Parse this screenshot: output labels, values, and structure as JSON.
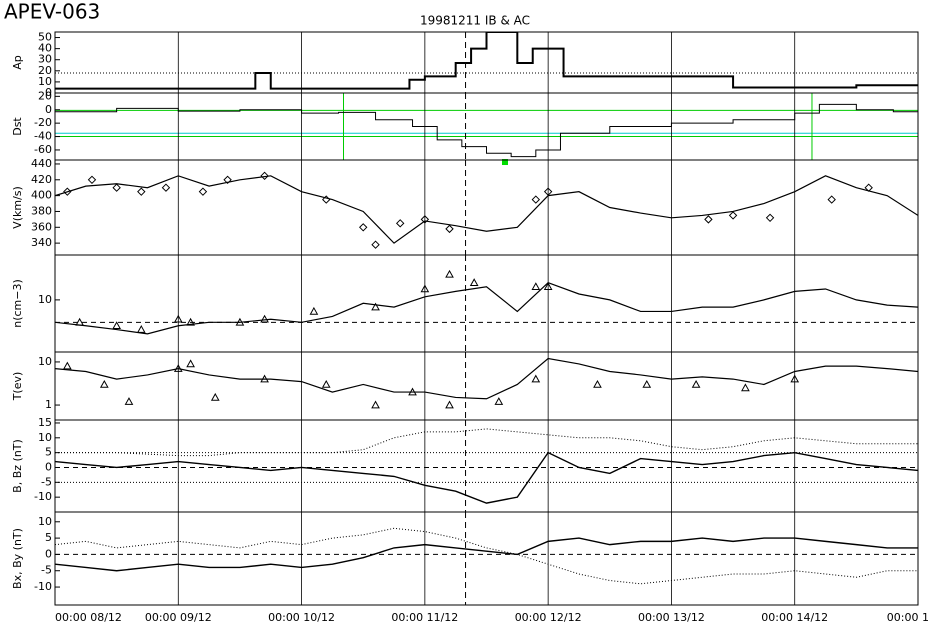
{
  "chart_data": [
    {
      "type": "step",
      "title": "APEV-063",
      "subtitle": "19981211 IB & AC",
      "ylabel": "Ap",
      "ylim": [
        0,
        55
      ],
      "yticks": [
        0,
        10,
        20,
        30,
        40,
        50
      ],
      "xlim": [
        0,
        7
      ],
      "xticks": [
        1,
        2,
        3,
        4,
        5,
        6
      ],
      "event_x": 3.33,
      "ref_lines": [
        {
          "y": 18,
          "style": "dotted",
          "color": "#000000"
        }
      ],
      "series": [
        {
          "x": [
            0,
            1.625,
            1.75,
            2.875,
            3.0,
            3.25,
            3.375,
            3.5,
            3.75,
            3.875,
            4.125,
            5.5,
            6.5
          ],
          "values": [
            4,
            18,
            4,
            12,
            15,
            27,
            40,
            55,
            27,
            40,
            15,
            5,
            7
          ],
          "color": "#000000",
          "style": "solid",
          "width": 2
        }
      ]
    },
    {
      "type": "step",
      "ylabel": "Dst",
      "ylim": [
        -75,
        25
      ],
      "yticks": [
        -60,
        -40,
        -20,
        0,
        20
      ],
      "xlim": [
        0,
        7
      ],
      "xticks": [
        1,
        2,
        3,
        4,
        5,
        6
      ],
      "event_x": 3.33,
      "ref_lines": [
        {
          "y": -1,
          "style": "solid",
          "color": "#00cc00"
        },
        {
          "y": -40,
          "style": "solid",
          "color": "#00cc00"
        },
        {
          "y": -35,
          "style": "solid",
          "color": "#00cccc"
        }
      ],
      "ref_vlines": [
        {
          "x": 2.34,
          "color": "#00cc00"
        },
        {
          "x": 6.14,
          "color": "#00cc00"
        }
      ],
      "points": [
        {
          "x": 3.65,
          "y": -78,
          "color": "#00dd00"
        }
      ],
      "series": [
        {
          "x": [
            0,
            0.5,
            1,
            1.5,
            2,
            2.3,
            2.6,
            2.9,
            3.1,
            3.3,
            3.5,
            3.7,
            3.9,
            4.1,
            4.5,
            5,
            5.5,
            6,
            6.2,
            6.5,
            6.8
          ],
          "values": [
            -3,
            2,
            -2,
            0,
            -5,
            -4,
            -15,
            -25,
            -45,
            -55,
            -65,
            -70,
            -60,
            -35,
            -25,
            -20,
            -15,
            -5,
            8,
            0,
            -3
          ],
          "color": "#000000",
          "style": "solid",
          "width": 1
        }
      ]
    },
    {
      "type": "line",
      "ylabel": "V(km/s)",
      "ylim": [
        325,
        445
      ],
      "yticks": [
        340,
        360,
        380,
        400,
        420,
        440
      ],
      "xlim": [
        0,
        7
      ],
      "xticks": [
        1,
        2,
        3,
        4,
        5,
        6
      ],
      "event_x": 3.33,
      "x": [
        0,
        0.25,
        0.5,
        0.75,
        1,
        1.25,
        1.5,
        1.75,
        2,
        2.25,
        2.5,
        2.75,
        3,
        3.25,
        3.5,
        3.75,
        4,
        4.25,
        4.5,
        4.75,
        5,
        5.25,
        5.5,
        5.75,
        6,
        6.25,
        6.5,
        6.75,
        7
      ],
      "series": [
        {
          "values": [
            400,
            412,
            415,
            410,
            425,
            412,
            420,
            425,
            405,
            395,
            380,
            340,
            368,
            362,
            355,
            360,
            400,
            405,
            385,
            378,
            372,
            375,
            380,
            390,
            405,
            425,
            410,
            400,
            375
          ],
          "color": "#000000",
          "style": "solid",
          "width": 1.2
        },
        {
          "x": [
            0.1,
            0.3,
            0.5,
            0.7,
            0.9,
            1.2,
            1.4,
            1.7,
            2.2,
            2.5,
            2.6,
            2.8,
            3.0,
            3.2,
            3.9,
            4.0,
            5.3,
            5.5,
            5.8,
            6.3,
            6.6
          ],
          "values": [
            405,
            420,
            410,
            405,
            410,
            405,
            420,
            425,
            395,
            360,
            338,
            365,
            370,
            358,
            395,
            405,
            370,
            375,
            372,
            395,
            410
          ],
          "color": "#000000",
          "marker": "diamond"
        }
      ]
    },
    {
      "type": "line",
      "ylabel": "n(cm−3)",
      "log": true,
      "ylim": [
        2,
        40
      ],
      "yticks": [
        10
      ],
      "xlim": [
        0,
        7
      ],
      "xticks": [
        1,
        2,
        3,
        4,
        5,
        6
      ],
      "event_x": 3.33,
      "ref_lines": [
        {
          "y": 5,
          "style": "dashed",
          "color": "#000000"
        }
      ],
      "x": [
        0,
        0.25,
        0.5,
        0.75,
        1,
        1.25,
        1.5,
        1.75,
        2,
        2.25,
        2.5,
        2.75,
        3,
        3.25,
        3.5,
        3.75,
        4,
        4.25,
        4.5,
        4.75,
        5,
        5.25,
        5.5,
        5.75,
        6,
        6.25,
        6.5,
        6.75,
        7
      ],
      "series": [
        {
          "values": [
            5,
            4.5,
            4,
            3.5,
            4.5,
            5,
            5,
            5.5,
            5,
            6,
            9,
            8,
            11,
            13,
            15,
            7,
            17,
            12,
            10,
            7,
            7,
            8,
            8,
            10,
            13,
            14,
            10,
            8.5,
            8
          ],
          "color": "#000000",
          "style": "solid",
          "width": 1.2
        },
        {
          "x": [
            0.2,
            0.5,
            0.7,
            1.0,
            1.1,
            1.5,
            1.7,
            2.1,
            2.6,
            3.0,
            3.2,
            3.4,
            3.9,
            4.0
          ],
          "values": [
            5,
            4.5,
            4,
            5.5,
            5,
            5,
            5.5,
            7,
            8,
            14,
            22,
            17,
            15,
            15
          ],
          "color": "#000000",
          "marker": "triangle"
        }
      ]
    },
    {
      "type": "line",
      "ylabel": "T(ev)",
      "log": true,
      "ylim": [
        0.45,
        17
      ],
      "yticks": [
        1,
        10
      ],
      "xlim": [
        0,
        7
      ],
      "xticks": [
        1,
        2,
        3,
        4,
        5,
        6
      ],
      "event_x": 3.33,
      "x": [
        0,
        0.25,
        0.5,
        0.75,
        1,
        1.25,
        1.5,
        1.75,
        2,
        2.25,
        2.5,
        2.75,
        3,
        3.25,
        3.5,
        3.75,
        4,
        4.25,
        4.5,
        4.75,
        5,
        5.25,
        5.5,
        5.75,
        6,
        6.25,
        6.5,
        6.75,
        7
      ],
      "series": [
        {
          "values": [
            7,
            6,
            4,
            5,
            7,
            5,
            4,
            4,
            3.5,
            2,
            3,
            2,
            2,
            1.5,
            1.4,
            3,
            12,
            9,
            6,
            5,
            4,
            4.5,
            4,
            3,
            6,
            8,
            8,
            7,
            6
          ],
          "color": "#000000",
          "style": "solid",
          "width": 1.2
        },
        {
          "x": [
            0.1,
            0.4,
            0.6,
            1.0,
            1.1,
            1.3,
            1.7,
            2.2,
            2.6,
            2.9,
            3.2,
            3.6,
            3.9,
            4.4,
            4.8,
            5.2,
            5.6,
            6.0
          ],
          "values": [
            8,
            3,
            1.2,
            7,
            9,
            1.5,
            4,
            3,
            1,
            2,
            1,
            1.2,
            4,
            3,
            3,
            3,
            2.5,
            4
          ],
          "color": "#000000",
          "marker": "triangle"
        }
      ]
    },
    {
      "type": "line",
      "ylabel": "B, Bz (nT)",
      "ylim": [
        -15,
        16
      ],
      "yticks": [
        -10,
        -5,
        0,
        5,
        10,
        15
      ],
      "xlim": [
        0,
        7
      ],
      "xticks": [
        1,
        2,
        3,
        4,
        5,
        6
      ],
      "event_x": 3.33,
      "ref_lines": [
        {
          "y": 5,
          "style": "dotted",
          "color": "#000000"
        },
        {
          "y": 0,
          "style": "dashed",
          "color": "#000000"
        },
        {
          "y": -5,
          "style": "dotted",
          "color": "#000000"
        }
      ],
      "x": [
        0,
        0.25,
        0.5,
        0.75,
        1,
        1.25,
        1.5,
        1.75,
        2,
        2.25,
        2.5,
        2.75,
        3,
        3.25,
        3.5,
        3.75,
        4,
        4.25,
        4.5,
        4.75,
        5,
        5.25,
        5.5,
        5.75,
        6,
        6.25,
        6.5,
        6.75,
        7
      ],
      "series": [
        {
          "values": [
            5,
            5,
            5,
            4.5,
            4,
            4,
            5,
            5,
            5,
            5,
            6,
            10,
            12,
            12,
            13,
            12,
            11,
            10,
            10,
            9,
            7,
            6,
            7,
            9,
            10,
            9,
            8,
            8,
            8
          ],
          "color": "#000000",
          "style": "dotted",
          "width": 1
        },
        {
          "values": [
            2,
            1,
            0,
            1,
            2,
            1,
            0,
            -1,
            0,
            -1,
            -2,
            -3,
            -6,
            -8,
            -12,
            -10,
            5,
            0,
            -2,
            3,
            2,
            1,
            2,
            4,
            5,
            3,
            1,
            0,
            -1
          ],
          "color": "#000000",
          "style": "solid",
          "width": 1.4
        }
      ]
    },
    {
      "type": "line",
      "ylabel": "Bx, By (nT)",
      "ylim": [
        -15.5,
        13
      ],
      "yticks": [
        -10,
        -5,
        0,
        5,
        10
      ],
      "xlim": [
        0,
        7
      ],
      "xticks": [
        {
          "value": 0,
          "label": "00:00 08/12"
        },
        {
          "value": 1,
          "label": "00:00 09/12"
        },
        {
          "value": 2,
          "label": "00:00 10/12"
        },
        {
          "value": 3,
          "label": "00:00 11/12"
        },
        {
          "value": 4,
          "label": "00:00 12/12"
        },
        {
          "value": 5,
          "label": "00:00 13/12"
        },
        {
          "value": 6,
          "label": "00:00 14/12"
        },
        {
          "value": 7,
          "label": "00:00 1"
        }
      ],
      "event_x": 3.33,
      "ref_lines": [
        {
          "y": 0,
          "style": "dashed",
          "color": "#000000"
        }
      ],
      "x": [
        0,
        0.25,
        0.5,
        0.75,
        1,
        1.25,
        1.5,
        1.75,
        2,
        2.25,
        2.5,
        2.75,
        3,
        3.25,
        3.5,
        3.75,
        4,
        4.25,
        4.5,
        4.75,
        5,
        5.25,
        5.5,
        5.75,
        6,
        6.25,
        6.5,
        6.75,
        7
      ],
      "series": [
        {
          "values": [
            -3,
            -4,
            -5,
            -4,
            -3,
            -4,
            -4,
            -3,
            -4,
            -3,
            -1,
            2,
            3,
            2,
            1,
            0,
            4,
            5,
            3,
            4,
            4,
            5,
            4,
            5,
            5,
            4,
            3,
            2,
            2
          ],
          "color": "#000000",
          "style": "solid",
          "width": 1.4
        },
        {
          "values": [
            3,
            4,
            2,
            3,
            4,
            3,
            2,
            4,
            3,
            5,
            6,
            8,
            7,
            5,
            2,
            0,
            -3,
            -6,
            -8,
            -9,
            -8,
            -7,
            -6,
            -6,
            -5,
            -6,
            -7,
            -5,
            -5
          ],
          "color": "#000000",
          "style": "dotted",
          "width": 1
        }
      ]
    }
  ]
}
